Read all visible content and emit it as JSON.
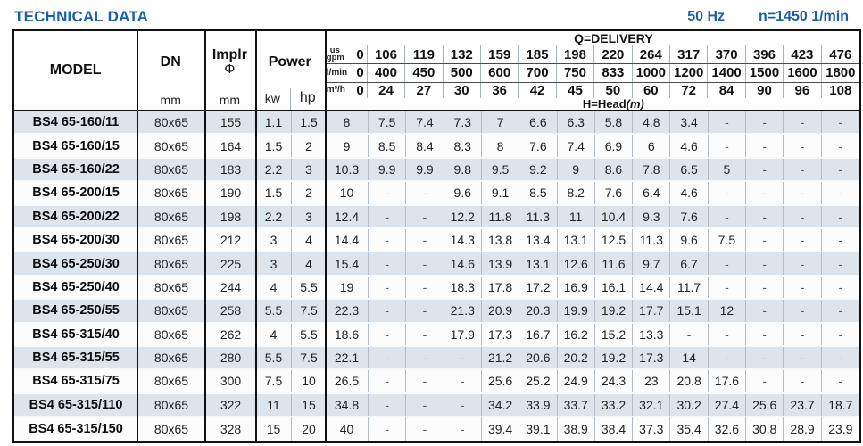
{
  "page": {
    "title": "TECHNICAL DATA",
    "frequency": "50 Hz",
    "speed": "n=1450 1/min"
  },
  "table": {
    "headers": {
      "model": "MODEL",
      "dn": "DN",
      "dn_unit": "mm",
      "implr": "Implr",
      "implr_symbol": "Φ",
      "implr_unit": "mm",
      "power": "Power",
      "kw": "kw",
      "hp": "hp",
      "delivery_title": "Q=DELIVERY",
      "head_title": "H=Head",
      "head_unit": "(m)"
    },
    "delivery_units": [
      {
        "label_top": "us",
        "label": "gpm",
        "values": [
          "0",
          "106",
          "119",
          "132",
          "159",
          "185",
          "198",
          "220",
          "264",
          "317",
          "370",
          "396",
          "423",
          "476"
        ]
      },
      {
        "label": "l/min",
        "values": [
          "0",
          "400",
          "450",
          "500",
          "600",
          "700",
          "750",
          "833",
          "1000",
          "1200",
          "1400",
          "1500",
          "1600",
          "1800"
        ]
      },
      {
        "label": "m³/h",
        "values": [
          "0",
          "24",
          "27",
          "30",
          "36",
          "42",
          "45",
          "50",
          "60",
          "72",
          "84",
          "90",
          "96",
          "108"
        ]
      }
    ],
    "rows": [
      {
        "model": "BS4 65-160/11",
        "dn": "80x65",
        "implr": "155",
        "kw": "1.1",
        "hp": "1.5",
        "head": [
          "8",
          "7.5",
          "7.4",
          "7.3",
          "7",
          "6.6",
          "6.3",
          "5.8",
          "4.8",
          "3.4",
          "-",
          "-",
          "-",
          "-"
        ]
      },
      {
        "model": "BS4 65-160/15",
        "dn": "80x65",
        "implr": "164",
        "kw": "1.5",
        "hp": "2",
        "head": [
          "9",
          "8.5",
          "8.4",
          "8.3",
          "8",
          "7.6",
          "7.4",
          "6.9",
          "6",
          "4.6",
          "-",
          "-",
          "-",
          "-"
        ]
      },
      {
        "model": "BS4 65-160/22",
        "dn": "80x65",
        "implr": "183",
        "kw": "2.2",
        "hp": "3",
        "head": [
          "10.3",
          "9.9",
          "9.9",
          "9.8",
          "9.5",
          "9.2",
          "9",
          "8.6",
          "7.8",
          "6.5",
          "5",
          "-",
          "-",
          "-"
        ]
      },
      {
        "model": "BS4 65-200/15",
        "dn": "80x65",
        "implr": "190",
        "kw": "1.5",
        "hp": "2",
        "head": [
          "10",
          "-",
          "-",
          "9.6",
          "9.1",
          "8.5",
          "8.2",
          "7.6",
          "6.4",
          "4.6",
          "-",
          "-",
          "-",
          "-"
        ]
      },
      {
        "model": "BS4 65-200/22",
        "dn": "80x65",
        "implr": "198",
        "kw": "2.2",
        "hp": "3",
        "head": [
          "12.4",
          "-",
          "-",
          "12.2",
          "11.8",
          "11.3",
          "11",
          "10.4",
          "9.3",
          "7.6",
          "-",
          "-",
          "-",
          "-"
        ]
      },
      {
        "model": "BS4 65-200/30",
        "dn": "80x65",
        "implr": "212",
        "kw": "3",
        "hp": "4",
        "head": [
          "14.4",
          "-",
          "-",
          "14.3",
          "13.8",
          "13.4",
          "13.1",
          "12.5",
          "11.3",
          "9.6",
          "7.5",
          "-",
          "-",
          "-"
        ]
      },
      {
        "model": "BS4 65-250/30",
        "dn": "80x65",
        "implr": "225",
        "kw": "3",
        "hp": "4",
        "head": [
          "15.4",
          "-",
          "-",
          "14.6",
          "13.9",
          "13.1",
          "12.6",
          "11.6",
          "9.7",
          "6.7",
          "-",
          "-",
          "-",
          "-"
        ]
      },
      {
        "model": "BS4 65-250/40",
        "dn": "80x65",
        "implr": "244",
        "kw": "4",
        "hp": "5.5",
        "head": [
          "19",
          "-",
          "-",
          "18.3",
          "17.8",
          "17.2",
          "16.9",
          "16.1",
          "14.4",
          "11.7",
          "-",
          "-",
          "-",
          "-"
        ]
      },
      {
        "model": "BS4 65-250/55",
        "dn": "80x65",
        "implr": "258",
        "kw": "5.5",
        "hp": "7.5",
        "head": [
          "22.3",
          "-",
          "-",
          "21.3",
          "20.9",
          "20.3",
          "19.9",
          "19.2",
          "17.7",
          "15.1",
          "12",
          "-",
          "-",
          "-"
        ]
      },
      {
        "model": "BS4 65-315/40",
        "dn": "80x65",
        "implr": "262",
        "kw": "4",
        "hp": "5.5",
        "head": [
          "18.6",
          "-",
          "-",
          "17.9",
          "17.3",
          "16.7",
          "16.2",
          "15.2",
          "13.3",
          "-",
          "-",
          "-",
          "-",
          "-"
        ]
      },
      {
        "model": "BS4 65-315/55",
        "dn": "80x65",
        "implr": "280",
        "kw": "5.5",
        "hp": "7.5",
        "head": [
          "22.1",
          "-",
          "-",
          "-",
          "21.2",
          "20.6",
          "20.2",
          "19.2",
          "17.3",
          "14",
          "-",
          "-",
          "-",
          "-"
        ]
      },
      {
        "model": "BS4 65-315/75",
        "dn": "80x65",
        "implr": "300",
        "kw": "7.5",
        "hp": "10",
        "head": [
          "26.5",
          "-",
          "-",
          "-",
          "25.6",
          "25.2",
          "24.9",
          "24.3",
          "23",
          "20.8",
          "17.6",
          "-",
          "-",
          "-"
        ]
      },
      {
        "model": "BS4 65-315/110",
        "dn": "80x65",
        "implr": "322",
        "kw": "11",
        "hp": "15",
        "head": [
          "34.8",
          "-",
          "-",
          "-",
          "34.2",
          "33.9",
          "33.7",
          "33.2",
          "32.1",
          "30.2",
          "27.4",
          "25.6",
          "23.7",
          "18.7"
        ]
      },
      {
        "model": "BS4 65-315/150",
        "dn": "80x65",
        "implr": "328",
        "kw": "15",
        "hp": "20",
        "head": [
          "40",
          "-",
          "-",
          "-",
          "39.4",
          "39.1",
          "38.9",
          "38.4",
          "37.3",
          "35.4",
          "32.6",
          "30.8",
          "28.9",
          "23.9"
        ]
      }
    ]
  }
}
